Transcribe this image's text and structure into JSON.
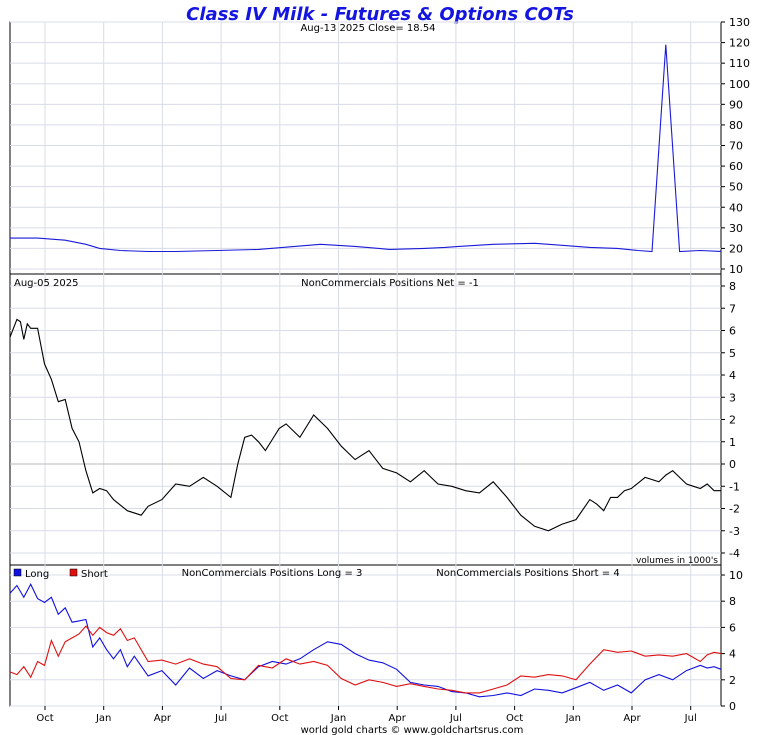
{
  "title": "Class IV Milk - Futures & Options COTs",
  "footer": "world gold charts © www.goldchartsrus.com",
  "colors": {
    "title": "#1515e0",
    "price": "#1a1ad8",
    "net": "#000000",
    "long": "#1010e0",
    "short": "#e01010",
    "grid": "#d8dce8"
  },
  "panels": {
    "price": {
      "header": "Aug-13  2025   Close= 18.54"
    },
    "net": {
      "date": "Aug-05  2025",
      "header": "NonCommercials Positions Net = -1",
      "note": "volumes in 1000's"
    },
    "ls": {
      "legend_long": "Long",
      "legend_short": "Short",
      "header_long": "NonCommercials Positions Long = 3",
      "header_short": "NonCommercials Positions Short = 4"
    }
  },
  "chart_data": [
    {
      "type": "line",
      "name": "price",
      "ylim": [
        10,
        130
      ],
      "yticks": [
        10,
        20,
        30,
        40,
        50,
        60,
        70,
        80,
        90,
        100,
        110,
        120,
        130
      ],
      "x": [
        0,
        4,
        8,
        11,
        13,
        16,
        20,
        24,
        30,
        36,
        45,
        50,
        55,
        60,
        63,
        65,
        70,
        76,
        80,
        84,
        88,
        91,
        93,
        95,
        97,
        100,
        103
      ],
      "values": [
        25,
        25,
        24,
        22,
        20,
        19,
        18.5,
        18.5,
        19,
        19.5,
        22,
        21,
        19.5,
        20,
        20.5,
        21,
        22,
        22.5,
        21.5,
        20.5,
        20,
        19,
        18.5,
        119,
        18.5,
        19,
        18.54
      ],
      "grid": true
    },
    {
      "type": "line",
      "name": "net",
      "ylim": [
        -4,
        8
      ],
      "yticks": [
        -4,
        -3,
        -2,
        -1,
        0,
        1,
        2,
        3,
        4,
        5,
        6,
        7,
        8
      ],
      "x": [
        0,
        1,
        1.5,
        2,
        2.5,
        3,
        4,
        5,
        6,
        7,
        8,
        9,
        10,
        11,
        12,
        13,
        14,
        15,
        17,
        19,
        20,
        22,
        24,
        26,
        28,
        30,
        32,
        33,
        34,
        35,
        36,
        37,
        38,
        39,
        40,
        42,
        44,
        46,
        48,
        49,
        50,
        51,
        52,
        53,
        54,
        56,
        58,
        60,
        61,
        62,
        64,
        66,
        68,
        70,
        72,
        74,
        76,
        78,
        80,
        82,
        84,
        85,
        86,
        87,
        88,
        89,
        90,
        92,
        94,
        95,
        96,
        97,
        98,
        99,
        100,
        101,
        102,
        103
      ],
      "values": [
        5.7,
        6.5,
        6.4,
        5.6,
        6.3,
        6.1,
        6.1,
        4.5,
        3.8,
        2.8,
        2.9,
        1.6,
        1,
        -0.3,
        -1.3,
        -1.1,
        -1.2,
        -1.6,
        -2.1,
        -2.3,
        -1.9,
        -1.6,
        -0.9,
        -1,
        -0.6,
        -1,
        -1.5,
        0,
        1.2,
        1.3,
        1,
        0.6,
        1.1,
        1.6,
        1.8,
        1.2,
        2.2,
        1.6,
        0.8,
        0.5,
        0.2,
        0.4,
        0.6,
        0.2,
        -0.2,
        -0.4,
        -0.8,
        -0.3,
        -0.6,
        -0.9,
        -1,
        -1.2,
        -1.3,
        -0.8,
        -1.5,
        -2.3,
        -2.8,
        -3,
        -2.7,
        -2.5,
        -1.6,
        -1.8,
        -2.1,
        -1.5,
        -1.5,
        -1.2,
        -1.1,
        -0.6,
        -0.8,
        -0.5,
        -0.3,
        -0.6,
        -0.9,
        -1,
        -1.1,
        -0.9,
        -1.2,
        -1.2
      ],
      "grid": true
    },
    {
      "type": "line",
      "name": "long_short",
      "ylim": [
        0,
        10
      ],
      "yticks": [
        0,
        2,
        4,
        6,
        8,
        10
      ],
      "x_ticks": [
        "Oct",
        "Jan",
        "Apr",
        "Jul",
        "Oct",
        "Jan",
        "Apr",
        "Jul",
        "Oct",
        "Jan",
        "Apr",
        "Jul"
      ],
      "series": [
        {
          "name": "Long",
          "x": [
            0,
            1,
            2,
            3,
            4,
            5,
            6,
            7,
            8,
            9,
            10,
            11,
            12,
            13,
            14,
            15,
            16,
            17,
            18,
            20,
            22,
            24,
            26,
            28,
            30,
            32,
            34,
            36,
            38,
            40,
            42,
            44,
            46,
            48,
            50,
            52,
            54,
            56,
            58,
            60,
            62,
            64,
            66,
            68,
            70,
            72,
            74,
            76,
            78,
            80,
            82,
            84,
            86,
            88,
            90,
            92,
            94,
            96,
            98,
            100,
            101,
            102,
            103
          ],
          "values": [
            8.6,
            9.2,
            8.3,
            9.3,
            8.2,
            7.9,
            8.3,
            7,
            7.5,
            6.4,
            6.5,
            6.6,
            4.5,
            5.2,
            4.3,
            3.6,
            4.3,
            3,
            3.8,
            2.3,
            2.7,
            1.6,
            2.9,
            2.1,
            2.7,
            2.3,
            2.0,
            3.0,
            3.4,
            3.2,
            3.6,
            4.3,
            4.9,
            4.7,
            4.0,
            3.5,
            3.3,
            2.8,
            1.8,
            1.6,
            1.5,
            1.1,
            1.0,
            0.7,
            0.8,
            1.0,
            0.8,
            1.3,
            1.2,
            1.0,
            1.4,
            1.8,
            1.2,
            1.6,
            1.0,
            2.0,
            2.4,
            2.0,
            2.7,
            3.1,
            2.9,
            3.0,
            2.8
          ]
        },
        {
          "name": "Short",
          "x": [
            0,
            1,
            2,
            3,
            4,
            5,
            6,
            7,
            8,
            9,
            10,
            11,
            12,
            13,
            14,
            15,
            16,
            17,
            18,
            20,
            22,
            24,
            26,
            28,
            30,
            32,
            34,
            36,
            38,
            40,
            42,
            44,
            46,
            48,
            50,
            52,
            54,
            56,
            58,
            60,
            62,
            64,
            66,
            68,
            70,
            72,
            74,
            76,
            78,
            80,
            82,
            84,
            86,
            88,
            90,
            92,
            94,
            96,
            98,
            100,
            101,
            102,
            103
          ],
          "values": [
            2.6,
            2.4,
            3.0,
            2.2,
            3.4,
            3.1,
            5.0,
            3.8,
            4.9,
            5.2,
            5.5,
            6.1,
            5.4,
            6.0,
            5.6,
            5.4,
            5.9,
            5.0,
            5.2,
            3.4,
            3.5,
            3.2,
            3.6,
            3.2,
            3.0,
            2.1,
            2.0,
            3.1,
            2.9,
            3.6,
            3.2,
            3.4,
            3.1,
            2.1,
            1.6,
            2.0,
            1.8,
            1.5,
            1.7,
            1.5,
            1.3,
            1.2,
            1.0,
            1.0,
            1.3,
            1.6,
            2.3,
            2.2,
            2.4,
            2.3,
            2.0,
            3.2,
            4.3,
            4.1,
            4.2,
            3.8,
            3.9,
            3.8,
            4.0,
            3.4,
            3.9,
            4.1,
            4.0
          ]
        }
      ],
      "grid": true
    }
  ]
}
